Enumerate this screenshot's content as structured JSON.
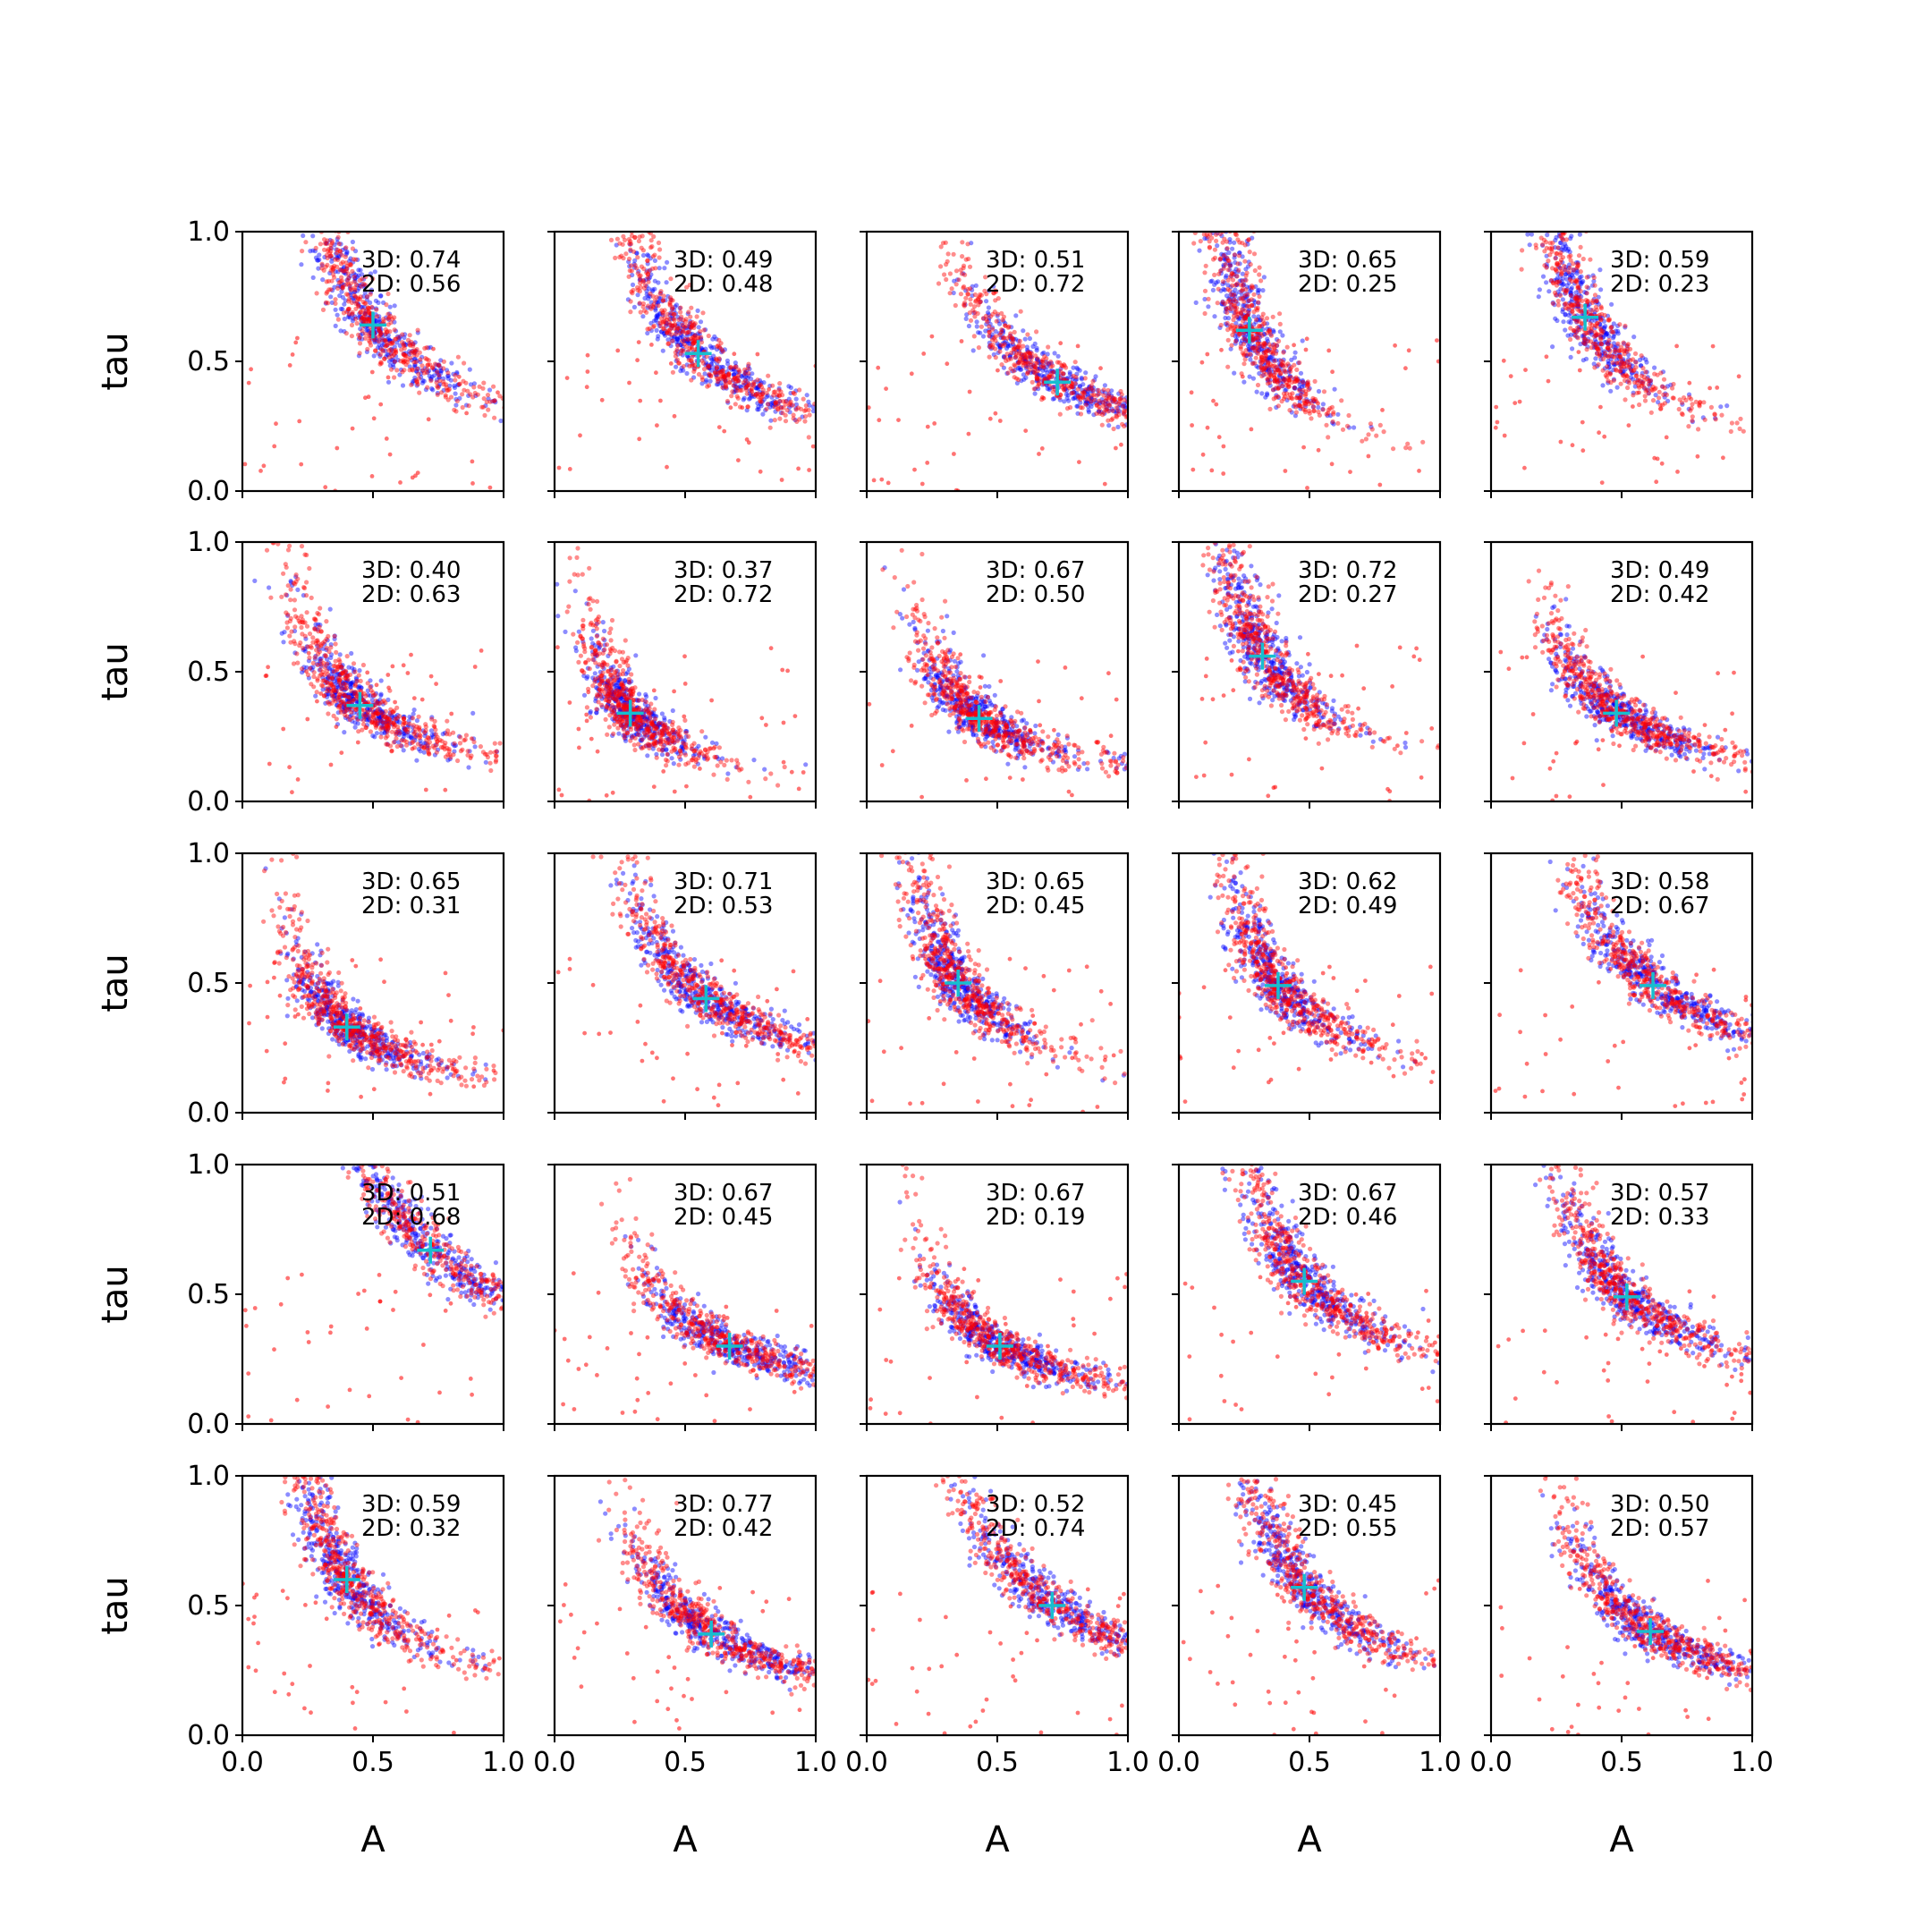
{
  "chart_data": {
    "type": "scatter",
    "layout": "5x5 grid of scatter subplots",
    "xlabel": "A",
    "ylabel": "tau",
    "xlim": [
      0,
      1
    ],
    "ylim": [
      0,
      1
    ],
    "xticks": [
      "0.0",
      "0.5",
      "1.0"
    ],
    "yticks": [
      "0.0",
      "0.5",
      "1.0"
    ],
    "grid": false,
    "series_colors": {
      "series_1": "#0000ff",
      "series_2": "#ff0000",
      "marker": "#17becf"
    },
    "marker_style": "plus",
    "panels": [
      {
        "label_3d": "3D: 0.74",
        "label_2d": "2D: 0.56",
        "marker": [
          0.5,
          0.64
        ]
      },
      {
        "label_3d": "3D: 0.49",
        "label_2d": "2D: 0.48",
        "marker": [
          0.55,
          0.53
        ]
      },
      {
        "label_3d": "3D: 0.51",
        "label_2d": "2D: 0.72",
        "marker": [
          0.73,
          0.42
        ]
      },
      {
        "label_3d": "3D: 0.65",
        "label_2d": "2D: 0.25",
        "marker": [
          0.27,
          0.62
        ]
      },
      {
        "label_3d": "3D: 0.59",
        "label_2d": "2D: 0.23",
        "marker": [
          0.36,
          0.67
        ]
      },
      {
        "label_3d": "3D: 0.40",
        "label_2d": "2D: 0.63",
        "marker": [
          0.45,
          0.37
        ]
      },
      {
        "label_3d": "3D: 0.37",
        "label_2d": "2D: 0.72",
        "marker": [
          0.29,
          0.34
        ]
      },
      {
        "label_3d": "3D: 0.67",
        "label_2d": "2D: 0.50",
        "marker": [
          0.43,
          0.32
        ]
      },
      {
        "label_3d": "3D: 0.72",
        "label_2d": "2D: 0.27",
        "marker": [
          0.32,
          0.56
        ]
      },
      {
        "label_3d": "3D: 0.49",
        "label_2d": "2D: 0.42",
        "marker": [
          0.48,
          0.34
        ]
      },
      {
        "label_3d": "3D: 0.65",
        "label_2d": "2D: 0.31",
        "marker": [
          0.4,
          0.33
        ]
      },
      {
        "label_3d": "3D: 0.71",
        "label_2d": "2D: 0.53",
        "marker": [
          0.58,
          0.44
        ]
      },
      {
        "label_3d": "3D: 0.65",
        "label_2d": "2D: 0.45",
        "marker": [
          0.35,
          0.5
        ]
      },
      {
        "label_3d": "3D: 0.62",
        "label_2d": "2D: 0.49",
        "marker": [
          0.38,
          0.49
        ]
      },
      {
        "label_3d": "3D: 0.58",
        "label_2d": "2D: 0.67",
        "marker": [
          0.62,
          0.49
        ]
      },
      {
        "label_3d": "3D: 0.51",
        "label_2d": "2D: 0.68",
        "marker": [
          0.72,
          0.67
        ]
      },
      {
        "label_3d": "3D: 0.67",
        "label_2d": "2D: 0.45",
        "marker": [
          0.67,
          0.3
        ]
      },
      {
        "label_3d": "3D: 0.67",
        "label_2d": "2D: 0.19",
        "marker": [
          0.51,
          0.3
        ]
      },
      {
        "label_3d": "3D: 0.67",
        "label_2d": "2D: 0.46",
        "marker": [
          0.48,
          0.55
        ]
      },
      {
        "label_3d": "3D: 0.57",
        "label_2d": "2D: 0.33",
        "marker": [
          0.52,
          0.49
        ]
      },
      {
        "label_3d": "3D: 0.59",
        "label_2d": "2D: 0.32",
        "marker": [
          0.4,
          0.6
        ]
      },
      {
        "label_3d": "3D: 0.77",
        "label_2d": "2D: 0.42",
        "marker": [
          0.6,
          0.39
        ]
      },
      {
        "label_3d": "3D: 0.52",
        "label_2d": "2D: 0.74",
        "marker": [
          0.71,
          0.5
        ]
      },
      {
        "label_3d": "3D: 0.45",
        "label_2d": "2D: 0.55",
        "marker": [
          0.48,
          0.57
        ]
      },
      {
        "label_3d": "3D: 0.50",
        "label_2d": "2D: 0.57",
        "marker": [
          0.61,
          0.4
        ]
      }
    ]
  }
}
